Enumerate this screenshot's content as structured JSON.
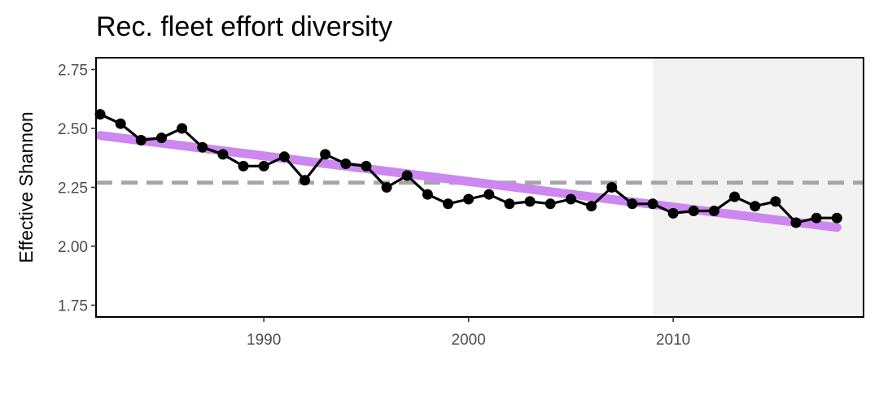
{
  "chart_data": {
    "type": "line",
    "title": "Rec. fleet effort diversity",
    "xlabel": "",
    "ylabel": "Effective Shannon",
    "xlim": [
      1981.8,
      2019.3
    ],
    "ylim": [
      1.7,
      2.8
    ],
    "x_ticks": [
      1990,
      2000,
      2010
    ],
    "y_ticks": [
      1.75,
      2.0,
      2.25,
      2.5,
      2.75
    ],
    "y_tick_labels": [
      "1.75",
      "2.00",
      "2.25",
      "2.50",
      "2.75"
    ],
    "grid": false,
    "shaded_region": {
      "x_start": 2009,
      "x_end": 2019.3,
      "color": "#f2f2f2"
    },
    "reference_line": {
      "y": 2.27,
      "style": "dashed",
      "color": "#a6a6a6"
    },
    "trend_line": {
      "x": [
        1982,
        2018
      ],
      "y": [
        2.47,
        2.08
      ],
      "color": "#cc88ee"
    },
    "series": [
      {
        "x": [
          1982,
          1983,
          1984,
          1985,
          1986,
          1987,
          1988,
          1989,
          1990,
          1991,
          1992,
          1993,
          1994,
          1995,
          1996,
          1997,
          1998,
          1999,
          2000,
          2001,
          2002,
          2003,
          2004,
          2005,
          2006,
          2007,
          2008,
          2009,
          2010,
          2011,
          2012,
          2013,
          2014,
          2015,
          2016,
          2017,
          2018
        ],
        "y": [
          2.56,
          2.52,
          2.45,
          2.46,
          2.5,
          2.42,
          2.39,
          2.34,
          2.34,
          2.38,
          2.28,
          2.39,
          2.35,
          2.34,
          2.25,
          2.3,
          2.22,
          2.18,
          2.2,
          2.22,
          2.18,
          2.19,
          2.18,
          2.2,
          2.17,
          2.25,
          2.18,
          2.18,
          2.14,
          2.15,
          2.15,
          2.21,
          2.17,
          2.19,
          2.1,
          2.12,
          2.12
        ],
        "color": "#000000"
      }
    ]
  }
}
